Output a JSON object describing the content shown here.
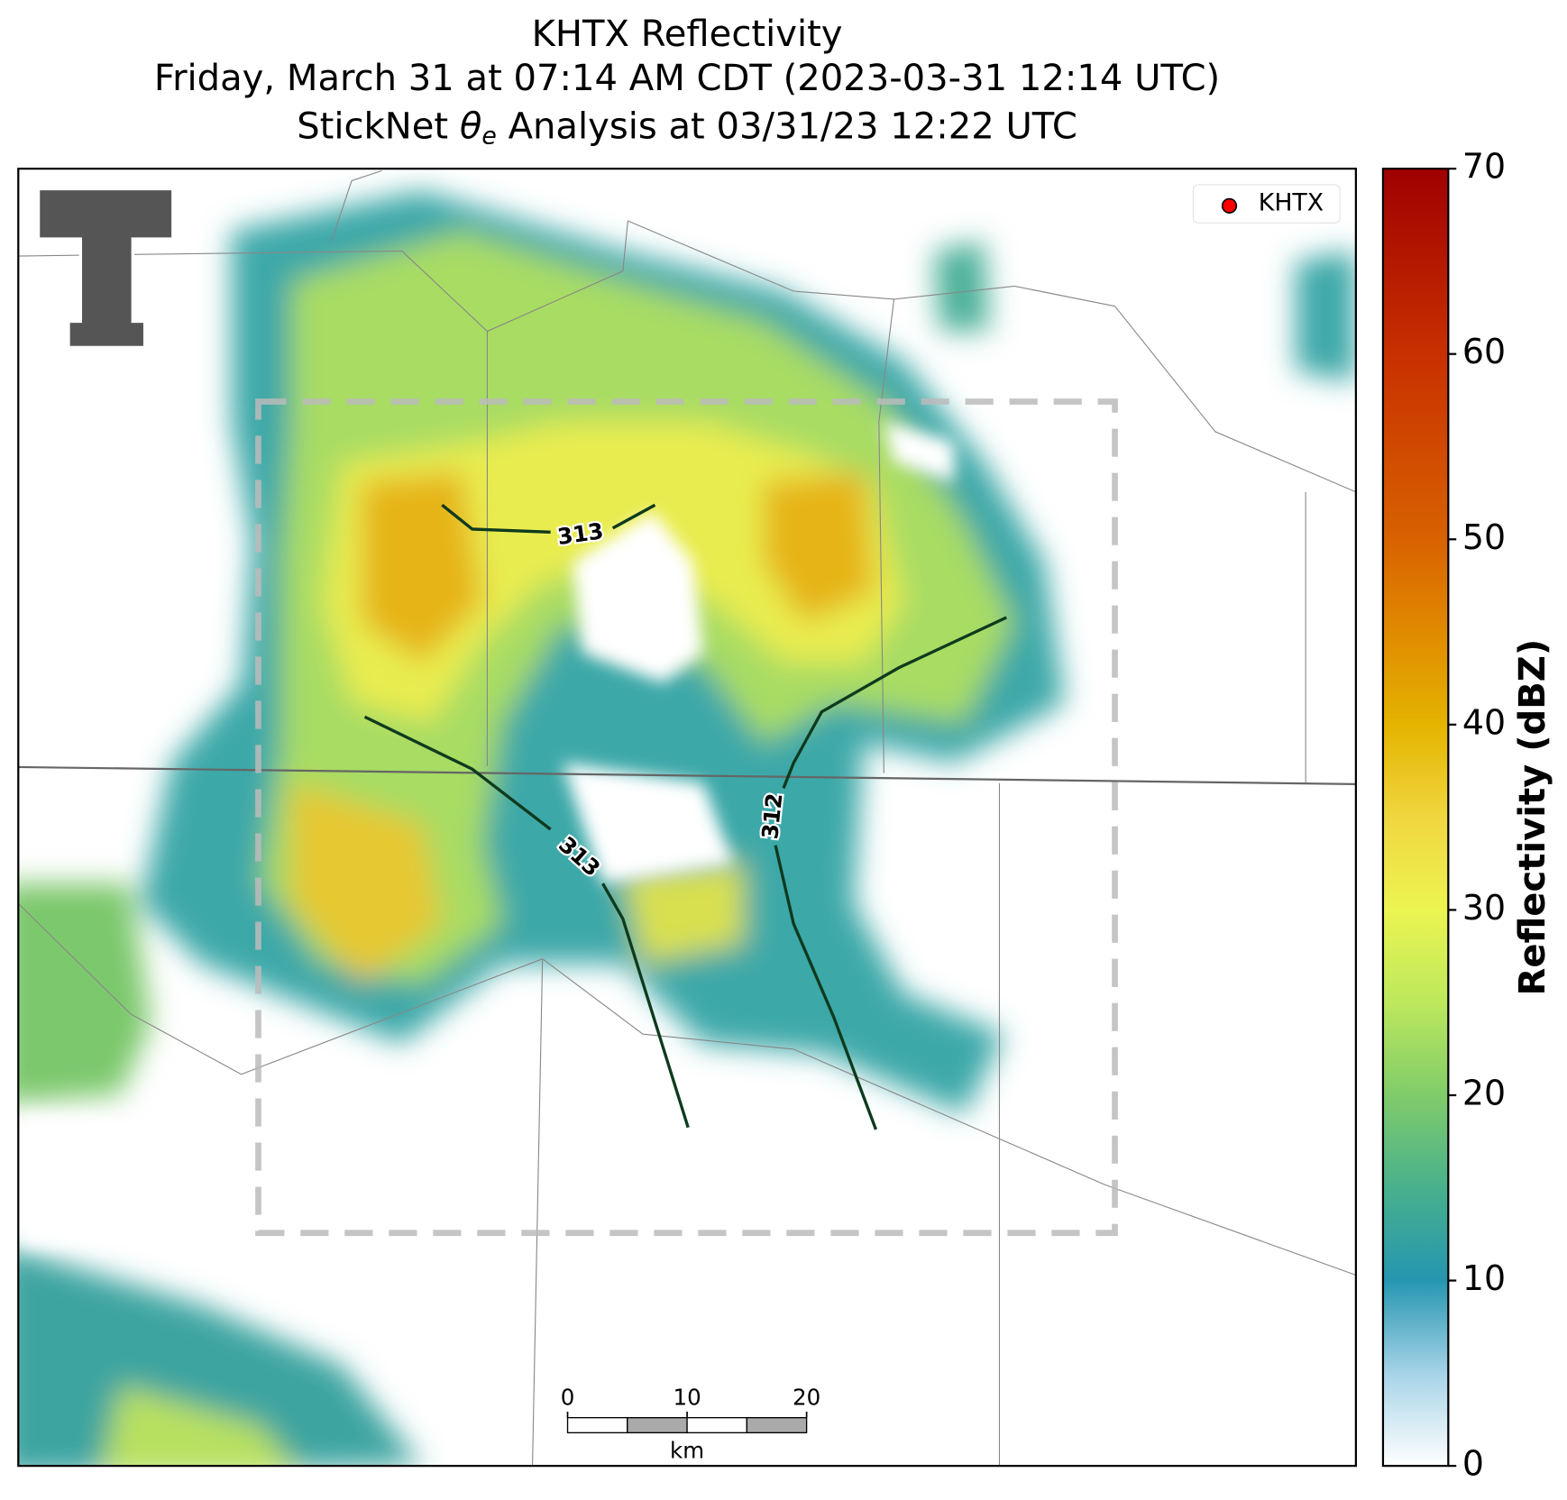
{
  "title_lines": [
    "KHTX Reflectivity",
    "Friday, March 31 at 07:14 AM CDT (2023-03-31 12:14 UTC)"
  ],
  "analysis_title": {
    "prefix": "StickNet",
    "symbol": "θ",
    "subscript": "e",
    "suffix": "Analysis at 03/31/23 12:22 UTC"
  },
  "legend": {
    "label": "KHTX",
    "color": "#ff0000"
  },
  "colorbar": {
    "label": "Reflectivity (dBZ)",
    "ylim": [
      0,
      70
    ],
    "yticks": [
      0,
      10,
      20,
      30,
      40,
      50,
      60,
      70
    ]
  },
  "contours": [
    {
      "level": 313
    },
    {
      "level": 313
    },
    {
      "level": 312
    }
  ],
  "scale_bar": {
    "ticks": [
      0,
      10,
      20
    ],
    "unit": "km"
  }
}
